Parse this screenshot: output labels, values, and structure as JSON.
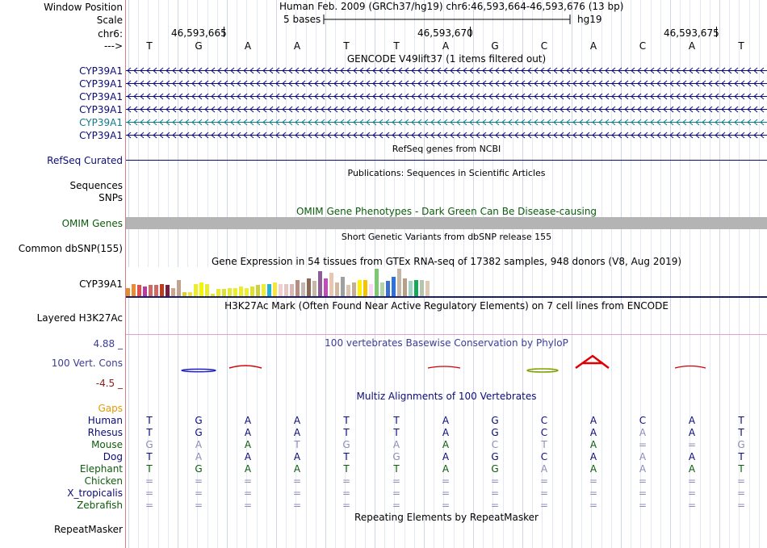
{
  "header": {
    "window_position_label": "Window Position",
    "scale_label": "Scale",
    "chr_label": "chr6:",
    "arrow_label": "--->",
    "position_text": "Human Feb. 2009 (GRCh37/hg19)   chr6:46,593,664-46,593,676 (13 bp)",
    "scale_text": "5 bases",
    "assembly": "hg19",
    "coord_labels": [
      "46,593,665",
      "46,593,670",
      "46,593,675"
    ],
    "bases": [
      "T",
      "G",
      "A",
      "A",
      "T",
      "T",
      "A",
      "G",
      "C",
      "A",
      "C",
      "A",
      "T"
    ]
  },
  "gencode": {
    "title": "GENCODE V49lift37 (1 items filtered out)",
    "genes": [
      "CYP39A1",
      "CYP39A1",
      "CYP39A1",
      "CYP39A1",
      "CYP39A1",
      "CYP39A1"
    ],
    "gene_colors": [
      "#0c0c78",
      "#0c0c78",
      "#0c0c78",
      "#0c0c78",
      "#12798c",
      "#0c0c78"
    ]
  },
  "refseq": {
    "label": "RefSeq Curated",
    "title": "RefSeq genes from NCBI"
  },
  "publications": {
    "title": "Publications: Sequences in Scientific Articles"
  },
  "sequences": {
    "label": "Sequences"
  },
  "snps": {
    "label": "SNPs"
  },
  "omim": {
    "label": "OMIM Genes",
    "title": "OMIM Gene Phenotypes - Dark Green Can Be Disease-causing"
  },
  "dbsnp": {
    "label": "Common dbSNP(155)",
    "title": "Short Genetic Variants from dbSNP release 155"
  },
  "gtex": {
    "label": "CYP39A1",
    "title": "Gene Expression in 54 tissues from GTEx RNA-seq of 17382 samples, 948 donors (V8, Aug 2019)",
    "values": [
      6,
      9,
      8,
      7,
      8,
      8,
      9,
      8,
      6,
      12,
      3,
      3,
      9,
      10,
      9,
      2,
      5,
      5,
      6,
      6,
      7,
      6,
      7,
      8,
      9,
      9,
      10,
      9,
      9,
      9,
      12,
      10,
      13,
      11,
      18,
      13,
      17,
      10,
      14,
      8,
      10,
      12,
      12,
      9,
      20,
      10,
      11,
      14,
      20,
      13,
      11,
      12,
      12,
      11
    ],
    "colors": [
      "#e68a31",
      "#e98c35",
      "#e05048",
      "#ba3aa5",
      "#cd6a63",
      "#cd6a63",
      "#c03a1c",
      "#7a1c3c",
      "#cea58d",
      "#c1a48f",
      "#dcd033",
      "#ece240",
      "#ecec2e",
      "#f5f500",
      "#ecec2e",
      "#e5e530",
      "#e9e930",
      "#e0e036",
      "#e7e73a",
      "#eded2c",
      "#ecec2e",
      "#eeee34",
      "#e0e030",
      "#ced043",
      "#eeee35",
      "#21b4cc",
      "#f5e53c",
      "#efcfd2",
      "#e4c6c4",
      "#d7b8b4",
      "#b58e81",
      "#c4b9b2",
      "#8a6a55",
      "#c7b9a8",
      "#8d5d9a",
      "#c14bb8",
      "#e7c7b2",
      "#d4b8a0",
      "#a0a0a0",
      "#dcc3b4",
      "#c2ae95",
      "#fff000",
      "#f6c300",
      "#fcd8f2",
      "#7dc972",
      "#b2d2a7",
      "#3b6fd0",
      "#2c71dc",
      "#c4b7a7",
      "#b59f88",
      "#a0d3c0",
      "#17a85b",
      "#b4c5ae",
      "#e0c9b3"
    ]
  },
  "h3k27ac": {
    "label": "Layered H3K27Ac",
    "title": "H3K27Ac Mark (Often Found Near Active Regulatory Elements) on 7 cell lines from ENCODE"
  },
  "phylop": {
    "label": "100 Vert. Cons",
    "max_label": "4.88 _",
    "min_label": "-4.5 _",
    "title": "100 vertebrates Basewise Conservation by PhyloP"
  },
  "multiz": {
    "title": "Multiz Alignments of 100 Vertebrates",
    "gaps_label": "Gaps",
    "species": [
      {
        "name": "Human",
        "color": "#0c0c78",
        "bases": [
          "T",
          "G",
          "A",
          "A",
          "T",
          "T",
          "A",
          "G",
          "C",
          "A",
          "C",
          "A",
          "T"
        ],
        "faded": []
      },
      {
        "name": "Rhesus",
        "color": "#0c0c78",
        "bases": [
          "T",
          "G",
          "A",
          "A",
          "T",
          "T",
          "A",
          "G",
          "C",
          "A",
          "A",
          "A",
          "T"
        ],
        "faded": [
          10
        ]
      },
      {
        "name": "Mouse",
        "color": "#0c5c0c",
        "bases": [
          "G",
          "A",
          "A",
          "T",
          "G",
          "A",
          "A",
          "C",
          "T",
          "A",
          "=",
          "=",
          "G"
        ],
        "faded": [
          0,
          1,
          3,
          4,
          5,
          7,
          8,
          10,
          11,
          12
        ]
      },
      {
        "name": "Dog",
        "color": "#0c0c78",
        "bases": [
          "T",
          "A",
          "A",
          "A",
          "T",
          "G",
          "A",
          "G",
          "C",
          "A",
          "A",
          "A",
          "T"
        ],
        "faded": [
          1,
          5,
          10
        ]
      },
      {
        "name": "Elephant",
        "color": "#0c5c0c",
        "bases": [
          "T",
          "G",
          "A",
          "A",
          "T",
          "T",
          "A",
          "G",
          "A",
          "A",
          "A",
          "A",
          "T"
        ],
        "faded": [
          8,
          10
        ]
      },
      {
        "name": "Chicken",
        "color": "#0c5c0c",
        "bases": [
          "=",
          "=",
          "=",
          "=",
          "=",
          "=",
          "=",
          "=",
          "=",
          "=",
          "=",
          "=",
          "="
        ],
        "faded": [
          0,
          1,
          2,
          3,
          4,
          5,
          6,
          7,
          8,
          9,
          10,
          11,
          12
        ]
      },
      {
        "name": "X_tropicalis",
        "color": "#0c0c78",
        "bases": [
          "=",
          "=",
          "=",
          "=",
          "=",
          "=",
          "=",
          "=",
          "=",
          "=",
          "=",
          "=",
          "="
        ],
        "faded": [
          0,
          1,
          2,
          3,
          4,
          5,
          6,
          7,
          8,
          9,
          10,
          11,
          12
        ]
      },
      {
        "name": "Zebrafish",
        "color": "#0c5c0c",
        "bases": [
          "=",
          "=",
          "=",
          "=",
          "=",
          "=",
          "=",
          "=",
          "=",
          "=",
          "=",
          "=",
          "="
        ],
        "faded": [
          0,
          1,
          2,
          3,
          4,
          5,
          6,
          7,
          8,
          9,
          10,
          11,
          12
        ]
      }
    ]
  },
  "repeatmasker": {
    "label": "RepeatMasker",
    "title": "Repeating Elements by RepeatMasker"
  }
}
